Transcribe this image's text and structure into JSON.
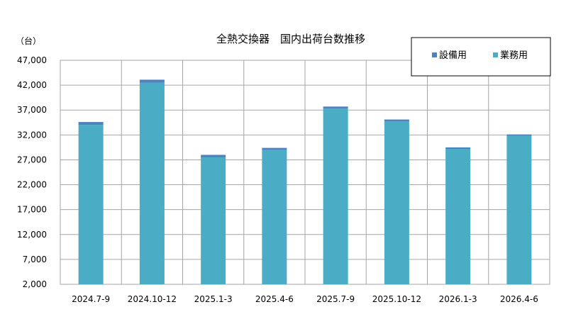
{
  "chart_data": {
    "type": "bar",
    "stacked": true,
    "title": "全熱交換器　国内出荷台数推移",
    "unit_label": "（台）",
    "categories": [
      "2024.7-9",
      "2024.10-12",
      "2025.1-3",
      "2025.4-6",
      "2025.7-9",
      "2025.10-12",
      "2026.1-3",
      "2026.4-6"
    ],
    "series": [
      {
        "name": "業務用",
        "color": "#4BACC6",
        "values": [
          32000,
          40500,
          25500,
          27000,
          35300,
          32700,
          27200,
          29800
        ]
      },
      {
        "name": "設備用",
        "color": "#4F81BD",
        "values": [
          600,
          600,
          500,
          400,
          400,
          400,
          300,
          300
        ]
      }
    ],
    "ylim": [
      2000,
      47000
    ],
    "yticks": [
      2000,
      7000,
      12000,
      17000,
      22000,
      27000,
      32000,
      37000,
      42000,
      47000
    ],
    "ytick_labels": [
      "2,000",
      "7,000",
      "12,000",
      "17,000",
      "22,000",
      "27,000",
      "32,000",
      "37,000",
      "42,000",
      "47,000"
    ],
    "grid": true,
    "legend_position": "top-right",
    "legend_order": [
      "設備用",
      "業務用"
    ]
  }
}
